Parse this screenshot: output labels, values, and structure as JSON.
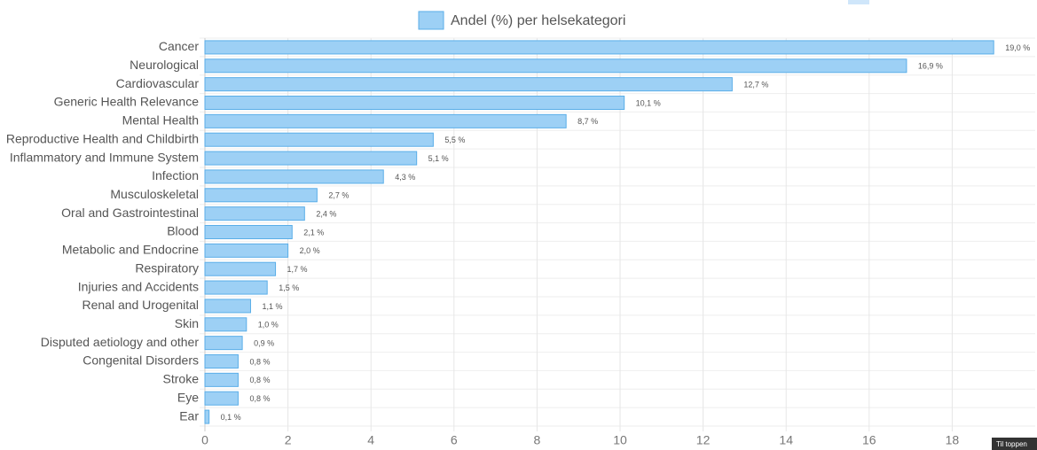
{
  "chart_data": {
    "type": "bar",
    "orientation": "horizontal",
    "categories": [
      "Cancer",
      "Neurological",
      "Cardiovascular",
      "Generic Health Relevance",
      "Mental Health",
      "Reproductive Health and Childbirth",
      "Inflammatory and Immune System",
      "Infection",
      "Musculoskeletal",
      "Oral and Gastrointestinal",
      "Blood",
      "Metabolic and Endocrine",
      "Respiratory",
      "Injuries and Accidents",
      "Renal and Urogenital",
      "Skin",
      "Disputed aetiology and other",
      "Congenital Disorders",
      "Stroke",
      "Eye",
      "Ear"
    ],
    "series": [
      {
        "name": "Andel (%) per helsekategori",
        "color": "#9dd0f5",
        "border": "#5aaee8",
        "values": [
          19.0,
          16.9,
          12.7,
          10.1,
          8.7,
          5.5,
          5.1,
          4.3,
          2.7,
          2.4,
          2.1,
          2.0,
          1.7,
          1.5,
          1.1,
          1.0,
          0.9,
          0.8,
          0.8,
          0.8,
          0.1
        ],
        "value_labels": [
          "19,0 %",
          "16,9 %",
          "12,7 %",
          "10,1 %",
          "8,7 %",
          "5,5 %",
          "5,1 %",
          "4,3 %",
          "2,7 %",
          "2,4 %",
          "2,1 %",
          "2,0 %",
          "1,7 %",
          "1,5 %",
          "1,1 %",
          "1,0 %",
          "0,9 %",
          "0,8 %",
          "0,8 %",
          "0,8 %",
          "0,1 %"
        ]
      }
    ],
    "xlim": [
      0,
      20
    ],
    "xticks": [
      0,
      2,
      4,
      6,
      8,
      10,
      12,
      14,
      16,
      18
    ],
    "grid": true,
    "legend": "top"
  },
  "button": "Til toppen"
}
